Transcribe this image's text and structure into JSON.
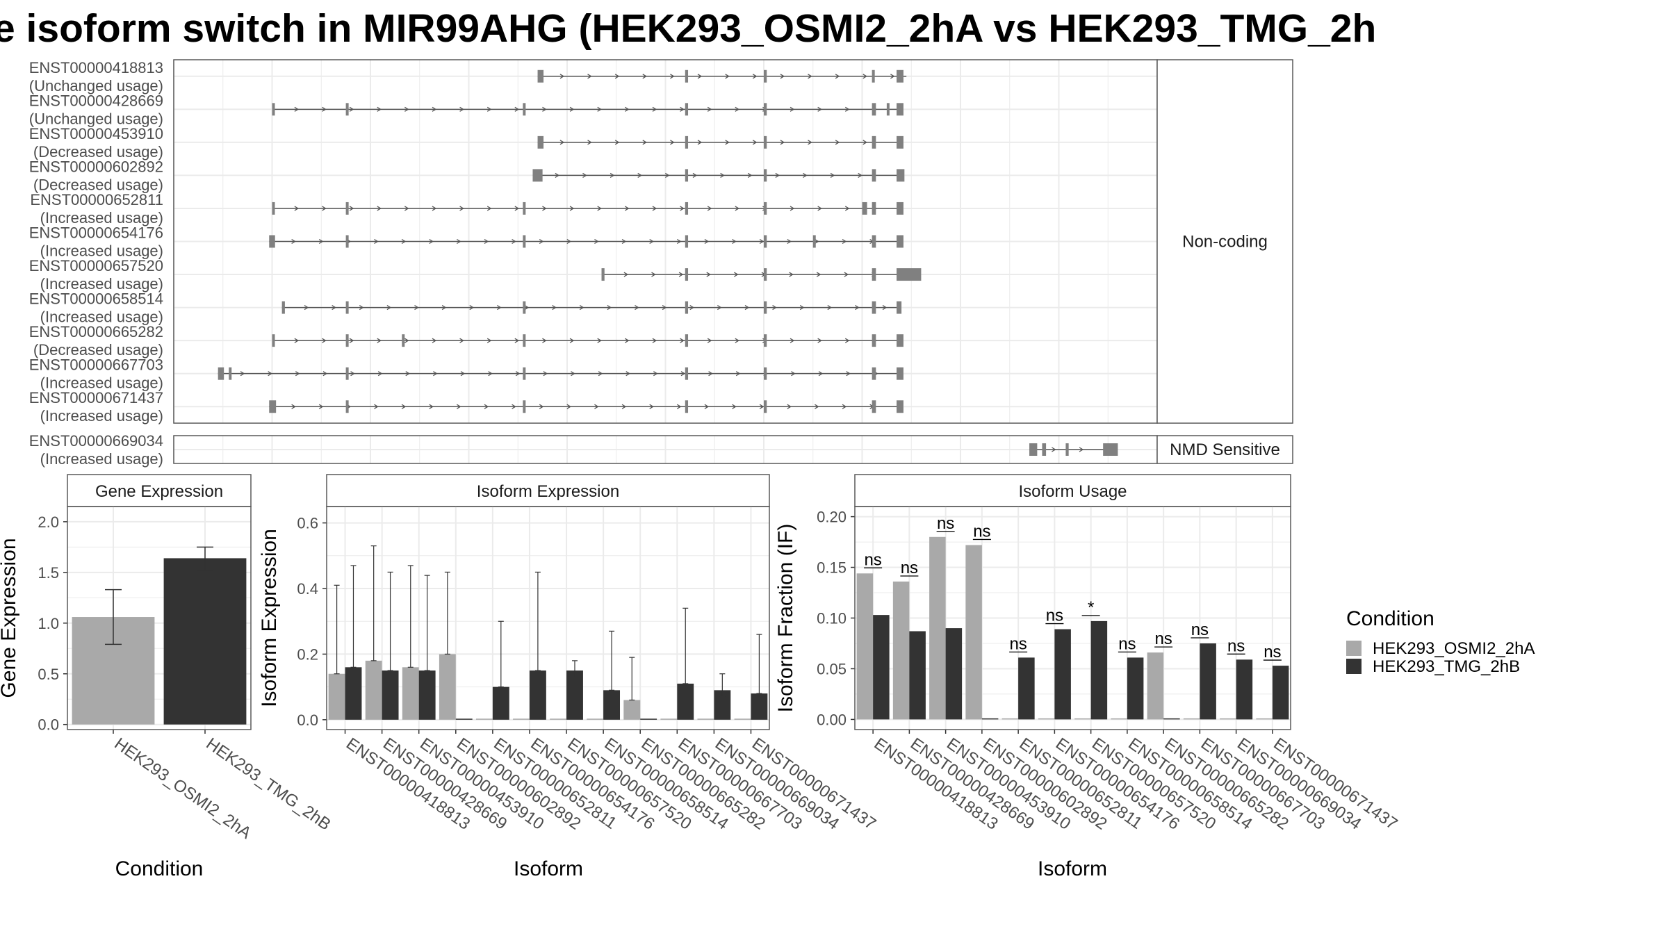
{
  "title": "e isoform switch in MIR99AHG (HEK293_OSMI2_2hA vs HEK293_TMG_2h",
  "colors": {
    "osmi": "#A9A9A9",
    "tmg": "#333333",
    "feature": "#808080",
    "panel_border": "#595959",
    "grid": "#EBEBEB",
    "strip_bg": "#FFFFFF"
  },
  "chart_data": [
    {
      "type": "gene-structure",
      "x_range": [
        0,
        100
      ],
      "panels": [
        {
          "strip": "Non-coding",
          "rows": [
            {
              "id": "ENST00000418813",
              "usage": "(Unchanged usage)",
              "span": [
                37,
                74.5
              ],
              "exons": [
                [
                  37,
                  37.6
                ],
                [
                  52,
                  52.3
                ],
                [
                  60,
                  60.3
                ],
                [
                  71,
                  71.2
                ],
                [
                  73.5,
                  74.2
                ]
              ]
            },
            {
              "id": "ENST00000428669",
              "usage": "(Unchanged usage)",
              "span": [
                10,
                73.5
              ],
              "exons": [
                [
                  10,
                  10.2
                ],
                [
                  17.5,
                  17.7
                ],
                [
                  35.5,
                  35.7
                ],
                [
                  52,
                  52.3
                ],
                [
                  60,
                  60.3
                ],
                [
                  71,
                  71.4
                ],
                [
                  72.5,
                  72.6
                ],
                [
                  73.5,
                  74.2
                ]
              ]
            },
            {
              "id": "ENST00000453910",
              "usage": "(Decreased usage)",
              "span": [
                37,
                73.5
              ],
              "exons": [
                [
                  37,
                  37.6
                ],
                [
                  52,
                  52.3
                ],
                [
                  60,
                  60.3
                ],
                [
                  71,
                  71.4
                ],
                [
                  73.5,
                  74.2
                ]
              ]
            },
            {
              "id": "ENST00000602892",
              "usage": "(Decreased usage)",
              "span": [
                36.5,
                73.5
              ],
              "exons": [
                [
                  36.5,
                  37.5
                ],
                [
                  52,
                  52.3
                ],
                [
                  60,
                  60.3
                ],
                [
                  71,
                  71.4
                ],
                [
                  73.5,
                  74.3
                ]
              ]
            },
            {
              "id": "ENST00000652811",
              "usage": "(Increased usage)",
              "span": [
                10,
                73.5
              ],
              "exons": [
                [
                  10,
                  10.2
                ],
                [
                  17.5,
                  17.7
                ],
                [
                  35.5,
                  35.7
                ],
                [
                  52,
                  52.3
                ],
                [
                  60,
                  60.3
                ],
                [
                  70,
                  70.5
                ],
                [
                  71,
                  71.4
                ],
                [
                  73.5,
                  74.2
                ]
              ]
            },
            {
              "id": "ENST00000654176",
              "usage": "(Increased usage)",
              "span": [
                9.7,
                73.5
              ],
              "exons": [
                [
                  9.7,
                  10.3
                ],
                [
                  17.5,
                  17.7
                ],
                [
                  35.5,
                  35.7
                ],
                [
                  52,
                  52.3
                ],
                [
                  60,
                  60.3
                ],
                [
                  65,
                  65.2
                ],
                [
                  71,
                  71.4
                ],
                [
                  73.5,
                  74.2
                ]
              ]
            },
            {
              "id": "ENST00000657520",
              "usage": "(Increased usage)",
              "span": [
                43.5,
                74
              ],
              "exons": [
                [
                  43.5,
                  43.8
                ],
                [
                  52,
                  52.3
                ],
                [
                  60,
                  60.3
                ],
                [
                  71,
                  71.4
                ],
                [
                  73.5,
                  76
                ]
              ]
            },
            {
              "id": "ENST00000658514",
              "usage": "(Increased usage)",
              "span": [
                11,
                73.5
              ],
              "exons": [
                [
                  11,
                  11.3
                ],
                [
                  17.5,
                  17.7
                ],
                [
                  35.5,
                  35.7
                ],
                [
                  52,
                  52.3
                ],
                [
                  60,
                  60.3
                ],
                [
                  71,
                  71.4
                ],
                [
                  73.5,
                  74
                ]
              ]
            },
            {
              "id": "ENST00000665282",
              "usage": "(Decreased usage)",
              "span": [
                10,
                73.5
              ],
              "exons": [
                [
                  10,
                  10.2
                ],
                [
                  17.5,
                  17.7
                ],
                [
                  23.2,
                  23.4
                ],
                [
                  35.5,
                  35.7
                ],
                [
                  52,
                  52.3
                ],
                [
                  60,
                  60.3
                ],
                [
                  71,
                  71.4
                ],
                [
                  73.5,
                  74.2
                ]
              ]
            },
            {
              "id": "ENST00000667703",
              "usage": "(Increased usage)",
              "span": [
                4.5,
                73.5
              ],
              "exons": [
                [
                  4.5,
                  5.1
                ],
                [
                  5.6,
                  5.8
                ],
                [
                  17.5,
                  17.7
                ],
                [
                  35.5,
                  35.7
                ],
                [
                  52,
                  52.3
                ],
                [
                  60,
                  60.3
                ],
                [
                  71,
                  71.4
                ],
                [
                  73.5,
                  74.2
                ]
              ]
            },
            {
              "id": "ENST00000671437",
              "usage": "(Increased usage)",
              "span": [
                9.7,
                73.5
              ],
              "exons": [
                [
                  9.7,
                  10.4
                ],
                [
                  17.5,
                  17.7
                ],
                [
                  35.5,
                  35.7
                ],
                [
                  52,
                  52.3
                ],
                [
                  60,
                  60.3
                ],
                [
                  71,
                  71.4
                ],
                [
                  73.5,
                  74.2
                ]
              ]
            }
          ]
        },
        {
          "strip": "NMD Sensitive",
          "rows": [
            {
              "id": "ENST00000669034",
              "usage": "(Increased usage)",
              "span": [
                87,
                95
              ],
              "exons": [
                [
                  87,
                  87.8
                ],
                [
                  88.3,
                  88.7
                ],
                [
                  90.7,
                  91
                ],
                [
                  94.5,
                  96
                ]
              ]
            }
          ]
        }
      ]
    },
    {
      "type": "bar",
      "title": "Gene Expression",
      "xlabel": "Condition",
      "ylabel": "Gene Expression",
      "ylim": [
        -0.05,
        2.15
      ],
      "yticks": [
        0.0,
        0.5,
        1.0,
        1.5,
        2.0
      ],
      "ytick_labels": [
        "0.0",
        "0.5",
        "1.0",
        "1.5",
        "2.0"
      ],
      "categories": [
        "HEK293_OSMI2_2hA",
        "HEK293_TMG_2hB"
      ],
      "values": [
        1.06,
        1.64
      ],
      "err_low": [
        0.79,
        1.52
      ],
      "err_high": [
        1.33,
        1.75
      ]
    },
    {
      "type": "bar",
      "title": "Isoform Expression",
      "xlabel": "Isoform",
      "ylabel": "Isoform Expression",
      "ylim": [
        -0.03,
        0.65
      ],
      "yticks": [
        0.0,
        0.2,
        0.4,
        0.6
      ],
      "ytick_labels": [
        "0.0",
        "0.2",
        "0.4",
        "0.6"
      ],
      "categories": [
        "ENST00000418813",
        "ENST00000428669",
        "ENST00000453910",
        "ENST00000602892",
        "ENST00000652811",
        "ENST00000654176",
        "ENST00000657520",
        "ENST00000658514",
        "ENST00000665282",
        "ENST00000667703",
        "ENST00000669034",
        "ENST00000671437"
      ],
      "series": [
        {
          "name": "HEK293_OSMI2_2hA",
          "values": [
            0.14,
            0.18,
            0.16,
            0.2,
            0,
            0,
            0,
            0,
            0.06,
            0,
            0,
            0
          ],
          "err_low": [
            0.14,
            0.18,
            0.16,
            0.2,
            0,
            0,
            0,
            0,
            0.06,
            0,
            0,
            0
          ],
          "err_high": [
            0.41,
            0.53,
            0.47,
            0.45,
            0,
            0,
            0,
            0,
            0.19,
            0,
            0,
            0
          ]
        },
        {
          "name": "HEK293_TMG_2hB",
          "values": [
            0.16,
            0.15,
            0.15,
            0,
            0.1,
            0.15,
            0.15,
            0.09,
            0,
            0.11,
            0.09,
            0.08
          ],
          "err_low": [
            0.16,
            0.15,
            0.15,
            0,
            0.1,
            0.15,
            0.13,
            0.09,
            0,
            0.11,
            0.07,
            0.08
          ],
          "err_high": [
            0.47,
            0.45,
            0.44,
            0,
            0.3,
            0.45,
            0.18,
            0.27,
            0,
            0.34,
            0.14,
            0.26
          ]
        }
      ]
    },
    {
      "type": "bar",
      "title": "Isoform Usage",
      "xlabel": "Isoform",
      "ylabel": "Isoform Fraction (IF)",
      "ylim": [
        -0.01,
        0.21
      ],
      "yticks": [
        0.0,
        0.05,
        0.1,
        0.15,
        0.2
      ],
      "ytick_labels": [
        "0.00",
        "0.05",
        "0.10",
        "0.15",
        "0.20"
      ],
      "categories": [
        "ENST00000418813",
        "ENST00000428669",
        "ENST00000453910",
        "ENST00000602892",
        "ENST00000652811",
        "ENST00000654176",
        "ENST00000657520",
        "ENST00000658514",
        "ENST00000665282",
        "ENST00000667703",
        "ENST00000669034",
        "ENST00000671437"
      ],
      "series": [
        {
          "name": "HEK293_OSMI2_2hA",
          "values": [
            0.144,
            0.136,
            0.18,
            0.172,
            0,
            0,
            0,
            0,
            0.066,
            0,
            0,
            0
          ]
        },
        {
          "name": "HEK293_TMG_2hB",
          "values": [
            0.103,
            0.087,
            0.09,
            0,
            0.061,
            0.089,
            0.097,
            0.061,
            0,
            0.075,
            0.059,
            0.053
          ]
        }
      ],
      "significance": [
        "ns",
        "ns",
        "ns",
        "ns",
        "ns",
        "ns",
        "*",
        "ns",
        "ns",
        "ns",
        "ns",
        "ns"
      ]
    }
  ],
  "legend": {
    "title": "Condition",
    "position": "right",
    "items": [
      {
        "label": "HEK293_OSMI2_2hA",
        "color": "#A9A9A9"
      },
      {
        "label": "HEK293_TMG_2hB",
        "color": "#333333"
      }
    ]
  }
}
